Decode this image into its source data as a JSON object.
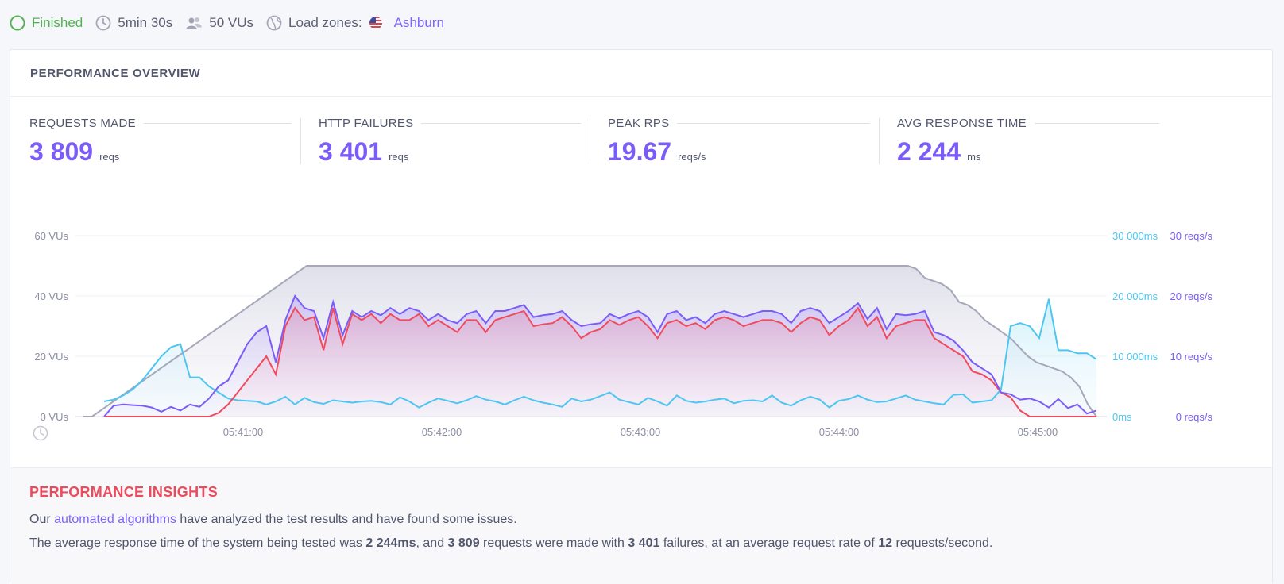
{
  "status": {
    "state": "Finished",
    "duration": "5min 30s",
    "vus": "50 VUs",
    "load_zones_label": "Load zones:",
    "load_zone": "Ashburn"
  },
  "panel": {
    "title": "PERFORMANCE OVERVIEW"
  },
  "metrics": [
    {
      "title": "REQUESTS MADE",
      "value": "3 809",
      "unit": "reqs"
    },
    {
      "title": "HTTP FAILURES",
      "value": "3 401",
      "unit": "reqs"
    },
    {
      "title": "PEAK RPS",
      "value": "19.67",
      "unit": "reqs/s"
    },
    {
      "title": "AVG RESPONSE TIME",
      "value": "2 244",
      "unit": "ms"
    }
  ],
  "chart_data": {
    "type": "line",
    "x_ticks": [
      "05:41:00",
      "05:42:00",
      "05:43:00",
      "05:44:00",
      "05:45:00"
    ],
    "left_axis_ticks": [
      "0 VUs",
      "20 VUs",
      "40 VUs",
      "60 VUs"
    ],
    "right_axis_ms_ticks": [
      "0ms",
      "10 000ms",
      "20 000ms",
      "30 000ms"
    ],
    "right_axis_reqs_ticks": [
      "0 reqs/s",
      "10 reqs/s",
      "20 reqs/s",
      "30 reqs/s"
    ],
    "left_ylim": [
      0,
      60
    ],
    "ms_ylim": [
      0,
      30000
    ],
    "reqs_ylim": [
      0,
      30
    ],
    "colors": {
      "vus": "#a6a7b9",
      "reqs": "#7b5cf7",
      "failures": "#f04b5d",
      "response": "#4cc6f1"
    },
    "vus": [
      0,
      0,
      2,
      4,
      6,
      8,
      10,
      12,
      14,
      16,
      18,
      20,
      22,
      24,
      26,
      28,
      30,
      32,
      34,
      36,
      38,
      40,
      42,
      44,
      46,
      48,
      50,
      50,
      50,
      50,
      50,
      50,
      50,
      50,
      50,
      50,
      50,
      50,
      50,
      50,
      50,
      50,
      50,
      50,
      50,
      50,
      50,
      50,
      50,
      50,
      50,
      50,
      50,
      50,
      50,
      50,
      50,
      50,
      50,
      50,
      50,
      50,
      50,
      50,
      50,
      50,
      50,
      50,
      50,
      50,
      50,
      50,
      50,
      50,
      50,
      50,
      50,
      50,
      50,
      50,
      50,
      50,
      50,
      50,
      50,
      50,
      50,
      50,
      50,
      50,
      50,
      50,
      50,
      50,
      50,
      50,
      50,
      49,
      46,
      45,
      44,
      42,
      38,
      37,
      35,
      32,
      30,
      28,
      26,
      23,
      20,
      18,
      17,
      16,
      15,
      13,
      10,
      4,
      0
    ],
    "reqs": [
      0,
      1.8,
      2,
      1.9,
      1.8,
      1.5,
      0.8,
      1.6,
      1,
      2,
      1.6,
      3,
      5,
      6,
      9,
      12,
      14,
      15,
      9,
      16,
      20,
      18,
      17.5,
      13,
      19,
      13.5,
      17.5,
      16.5,
      17.5,
      16.8,
      18,
      17,
      18,
      17.5,
      16,
      17,
      16,
      15.5,
      17,
      17.5,
      15.5,
      17.5,
      17.5,
      18,
      18.5,
      16.5,
      16.8,
      17,
      17.5,
      16,
      15,
      15.3,
      15.5,
      17,
      16.3,
      17,
      17.5,
      16.5,
      14,
      17,
      17.5,
      16,
      16.5,
      15.5,
      17,
      17.5,
      17,
      16.5,
      17,
      17.5,
      17.5,
      17,
      15.5,
      17.5,
      18,
      17.5,
      15.5,
      16.5,
      17.5,
      18.8,
      16.2,
      18,
      14.5,
      17,
      16.8,
      17,
      17.5,
      14,
      13.5,
      12.6,
      11,
      9,
      8,
      7,
      4,
      3.7,
      2.8,
      3,
      2.5,
      1.5,
      2.9,
      1.4,
      2,
      0.5,
      1
    ],
    "failures": [
      0,
      0,
      0,
      0,
      0,
      0,
      0,
      0,
      0,
      0,
      0,
      0,
      0.6,
      2,
      4,
      6,
      8,
      10,
      7,
      15,
      18,
      16,
      16.5,
      11,
      18,
      12,
      17,
      16,
      17,
      15.5,
      17,
      16,
      16,
      17,
      15,
      16,
      15,
      14,
      16,
      16,
      14,
      16,
      16.5,
      17,
      17.5,
      15,
      15.3,
      15.5,
      16.5,
      15,
      13,
      14,
      14.5,
      16,
      15.2,
      16,
      16.5,
      15,
      13,
      15.5,
      16,
      15,
      15.5,
      14.5,
      16,
      16.5,
      16,
      15,
      15.5,
      16,
      16,
      15.5,
      14,
      15.5,
      16.5,
      16,
      13.5,
      15,
      16,
      18,
      15,
      16.5,
      13,
      15,
      15.5,
      16,
      16,
      13,
      12,
      11,
      10,
      7.5,
      7,
      6,
      4,
      3.2,
      1,
      0,
      0,
      0,
      0,
      0,
      0,
      0,
      0
    ],
    "response": [
      2500,
      2800,
      3500,
      4500,
      6000,
      8000,
      10000,
      11500,
      12000,
      6500,
      6500,
      5000,
      4000,
      3000,
      2700,
      2600,
      2500,
      2000,
      2500,
      3300,
      2000,
      3100,
      2400,
      2100,
      2700,
      2500,
      2300,
      2500,
      2600,
      2400,
      2000,
      3200,
      2500,
      1500,
      2300,
      3000,
      2600,
      2200,
      2700,
      3400,
      2800,
      2500,
      2000,
      2700,
      3300,
      2700,
      2300,
      2000,
      1600,
      3000,
      2500,
      2800,
      3400,
      4000,
      2800,
      2400,
      2000,
      3100,
      2500,
      1800,
      3500,
      2600,
      2300,
      2500,
      2800,
      3000,
      2200,
      2600,
      2700,
      2500,
      3500,
      2300,
      1800,
      2700,
      3300,
      2800,
      1500,
      2600,
      2900,
      3500,
      2800,
      2400,
      2500,
      3000,
      3500,
      2800,
      2500,
      2200,
      2000,
      3600,
      3700,
      2300,
      2500,
      2700,
      4500,
      15000,
      15500,
      15000,
      13000,
      19500,
      11000,
      11000,
      10500,
      10500,
      9500
    ],
    "right_axis_ms_label": "",
    "title": "",
    "xlabel": "",
    "ylabel": ""
  },
  "insights": {
    "title": "PERFORMANCE INSIGHTS",
    "line1_pre": "Our ",
    "line1_link": "automated algorithms",
    "line1_post": " have analyzed the test results and have found some issues.",
    "line2_a": "The average response time of the system being tested was ",
    "line2_b": "2 244ms",
    "line2_c": ", and ",
    "line2_d": "3 809",
    "line2_e": " requests were made with ",
    "line2_f": "3 401",
    "line2_g": " failures, at an average request rate of ",
    "line2_h": "12",
    "line2_i": " requests/second."
  }
}
